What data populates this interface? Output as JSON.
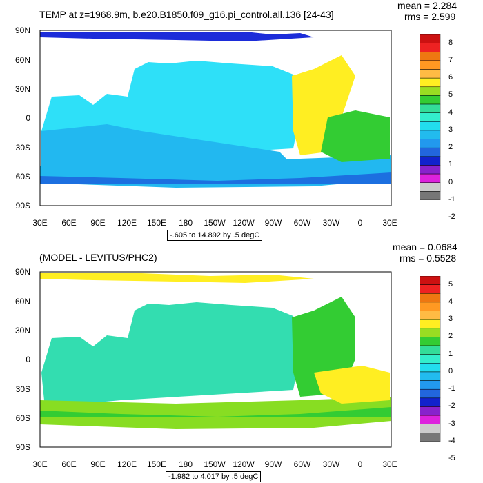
{
  "panel1": {
    "title": "TEMP at z=1968.9m, b.e20.B1850.f09_g16.pi_control.all.136 [24-43]",
    "mean": "mean = 2.284",
    "rms": "rms = 2.599",
    "range": "-.605 to 14.892 by .5 degC",
    "lat_labels": [
      "90N",
      "60N",
      "30N",
      "0",
      "30S",
      "60S",
      "90S"
    ],
    "lon_labels": [
      "30E",
      "60E",
      "90E",
      "120E",
      "150E",
      "180",
      "150W",
      "120W",
      "90W",
      "60W",
      "30W",
      "0",
      "30E"
    ],
    "colorbar": {
      "labels": [
        "8",
        "7",
        "6",
        "5",
        "4",
        "3",
        "2",
        "1",
        "0",
        "-1",
        "-2"
      ],
      "colors": [
        "#cc1111",
        "#ee2222",
        "#ee7711",
        "#ff9922",
        "#ffbb44",
        "#ffee22",
        "#99dd22",
        "#33cc33",
        "#33dd99",
        "#33eecc",
        "#22ddee",
        "#22bbee",
        "#2299ee",
        "#2266dd",
        "#1122cc",
        "#8822cc",
        "#dd22dd",
        "#cccccc",
        "#777777"
      ]
    }
  },
  "panel2": {
    "title": "(MODEL - LEVITUS/PHC2)",
    "mean": "mean = 0.0684",
    "rms": "rms = 0.5528",
    "range": "-1.982 to 4.017 by .5 degC",
    "lat_labels": [
      "90N",
      "60N",
      "30N",
      "0",
      "30S",
      "60S",
      "90S"
    ],
    "lon_labels": [
      "30E",
      "60E",
      "90E",
      "120E",
      "150E",
      "180",
      "150W",
      "120W",
      "90W",
      "60W",
      "30W",
      "0",
      "30E"
    ],
    "colorbar": {
      "labels": [
        "5",
        "4",
        "3",
        "2",
        "1",
        "0",
        "-1",
        "-2",
        "-3",
        "-4",
        "-5"
      ],
      "colors": [
        "#cc1111",
        "#ee2222",
        "#ee7711",
        "#ff9922",
        "#ffbb44",
        "#ffee22",
        "#99dd22",
        "#33cc33",
        "#33dd99",
        "#33eecc",
        "#22ddee",
        "#22bbee",
        "#2299ee",
        "#2266dd",
        "#1122cc",
        "#8822cc",
        "#dd22dd",
        "#cccccc",
        "#777777"
      ]
    }
  },
  "colors": {
    "deep_blue": "#1c2cd9",
    "light_cyan": "#2ee0f8",
    "mid_blue": "#22b8f0",
    "green": "#33cc33",
    "aqua": "#33ddb0",
    "yellow": "#ffee22",
    "lime": "#88dd22"
  }
}
